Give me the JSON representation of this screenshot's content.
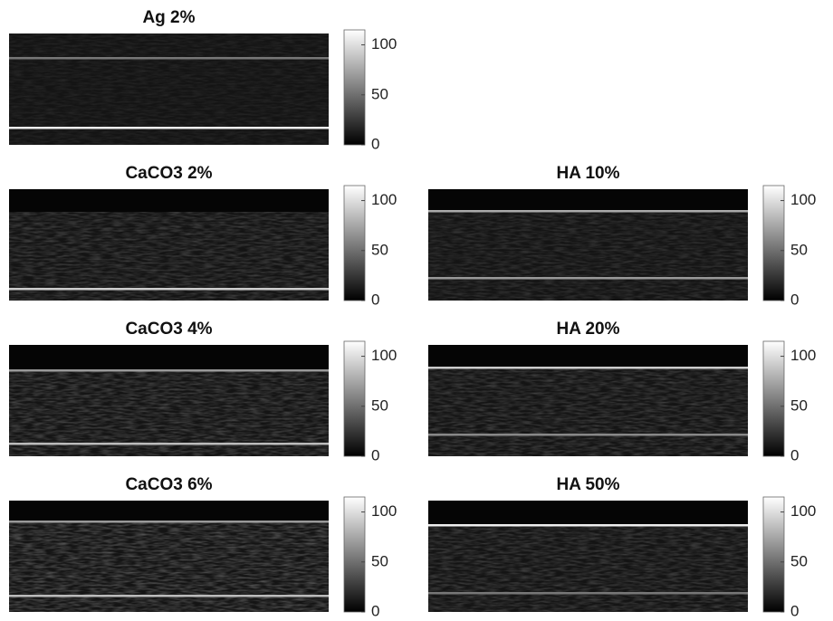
{
  "panels": [
    {
      "title": "Ag 2%",
      "colorbar": {
        "lim": [
          0,
          115
        ],
        "ticks": [
          0,
          50,
          100
        ]
      }
    },
    {
      "title": "CaCO3 2%",
      "colorbar": {
        "lim": [
          0,
          115
        ],
        "ticks": [
          0,
          50,
          100
        ]
      }
    },
    {
      "title": "HA 10%",
      "colorbar": {
        "lim": [
          0,
          115
        ],
        "ticks": [
          0,
          50,
          100
        ]
      }
    },
    {
      "title": "CaCO3 4%",
      "colorbar": {
        "lim": [
          0,
          115
        ],
        "ticks": [
          0,
          50,
          100
        ]
      }
    },
    {
      "title": "HA 20%",
      "colorbar": {
        "lim": [
          0,
          115
        ],
        "ticks": [
          0,
          50,
          100
        ]
      }
    },
    {
      "title": "CaCO3 6%",
      "colorbar": {
        "lim": [
          0,
          115
        ],
        "ticks": [
          0,
          50,
          100
        ]
      }
    },
    {
      "title": "HA 50%",
      "colorbar": {
        "lim": [
          0,
          115
        ],
        "ticks": [
          0,
          50,
          100
        ]
      }
    }
  ]
}
